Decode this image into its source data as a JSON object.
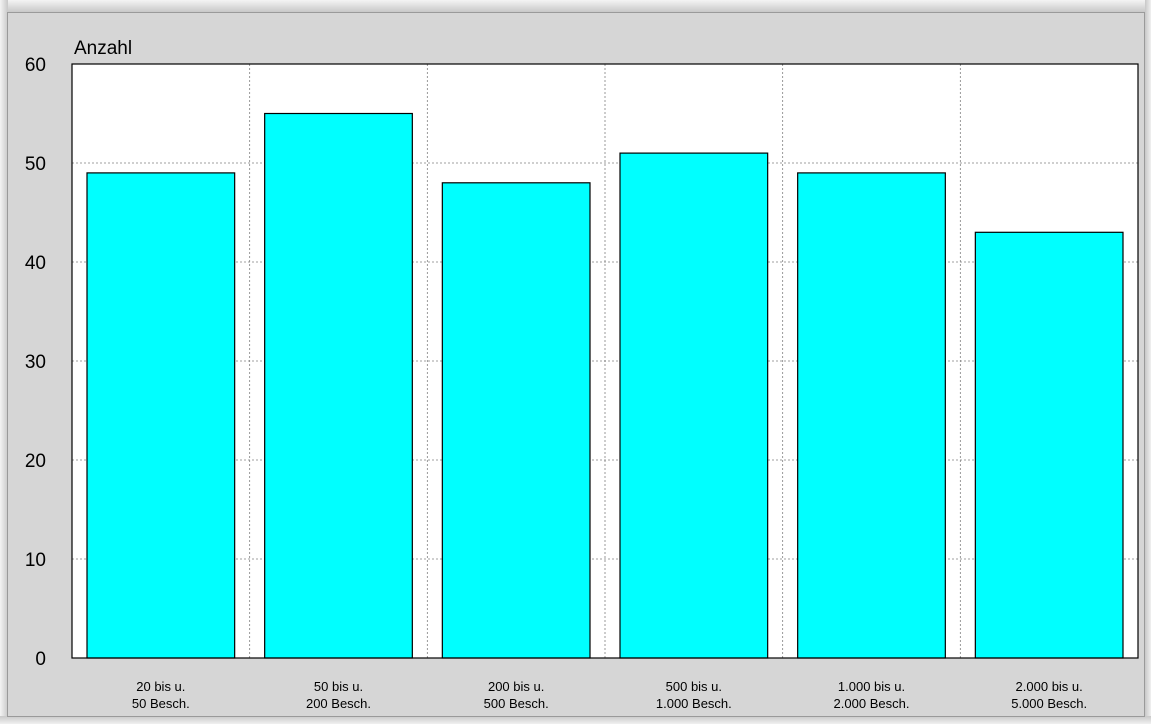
{
  "chart_data": {
    "type": "bar",
    "ylabel": "Anzahl",
    "xlabel": "",
    "ylim": [
      0,
      60
    ],
    "yticks": [
      0,
      10,
      20,
      30,
      40,
      50,
      60
    ],
    "grid": true,
    "bar_color": "#00ffff",
    "categories": [
      [
        "20 bis u.",
        "50 Besch."
      ],
      [
        "50 bis u.",
        "200 Besch."
      ],
      [
        "200 bis u.",
        "500 Besch."
      ],
      [
        "500 bis u.",
        "1.000 Besch."
      ],
      [
        "1.000 bis u.",
        "2.000 Besch."
      ],
      [
        "2.000 bis u.",
        "5.000 Besch."
      ]
    ],
    "values": [
      49,
      55,
      48,
      51,
      49,
      43
    ]
  }
}
